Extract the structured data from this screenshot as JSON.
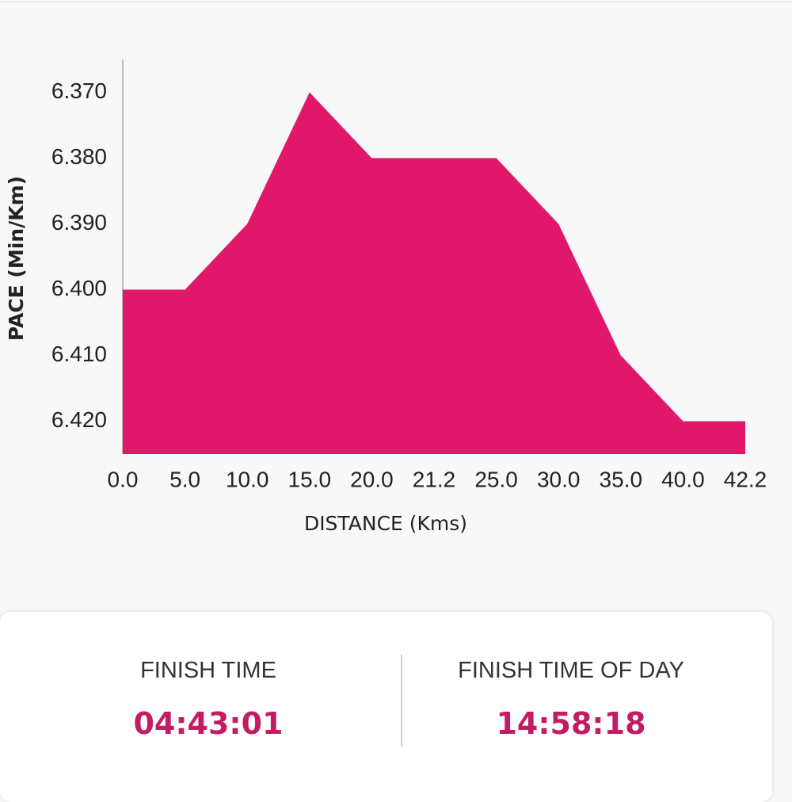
{
  "chart_data": {
    "type": "area",
    "x_label": "DISTANCE (Kms)",
    "y_label": "PACE (Min/Km)",
    "categories": [
      "0.0",
      "5.0",
      "10.0",
      "15.0",
      "20.0",
      "21.2",
      "25.0",
      "30.0",
      "35.0",
      "40.0",
      "42.2"
    ],
    "values": [
      6.4,
      6.4,
      6.39,
      6.37,
      6.38,
      6.38,
      6.38,
      6.39,
      6.41,
      6.42,
      6.42
    ],
    "color": "#e0176a",
    "ylim": [
      6.425,
      6.365
    ],
    "yticks": [
      {
        "value": 6.37,
        "label": "6.370"
      },
      {
        "value": 6.38,
        "label": "6.380"
      },
      {
        "value": 6.39,
        "label": "6.390"
      },
      {
        "value": 6.4,
        "label": "6.400"
      },
      {
        "value": 6.41,
        "label": "6.410"
      },
      {
        "value": 6.42,
        "label": "6.420"
      }
    ],
    "grid": false
  },
  "summary": {
    "finish_time": {
      "label": "FINISH TIME",
      "value": "04:43:01"
    },
    "finish_time_of_day": {
      "label": "FINISH TIME OF DAY",
      "value": "14:58:18"
    }
  }
}
